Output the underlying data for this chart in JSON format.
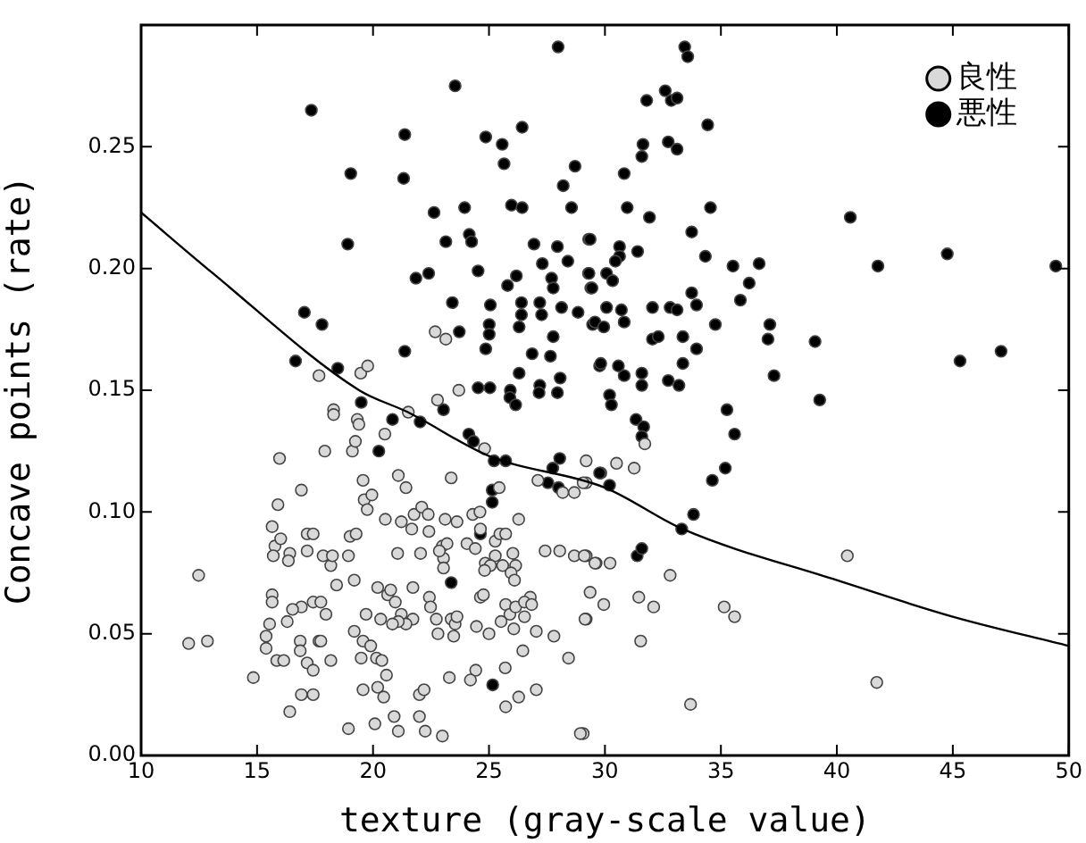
{
  "chart_data": {
    "type": "scatter",
    "xlabel": "texture (gray-scale value)",
    "ylabel": "Concave points (rate)",
    "xlim": [
      10,
      50
    ],
    "xticks": [
      10,
      15,
      20,
      25,
      30,
      35,
      40,
      45,
      50
    ],
    "ylim": [
      0,
      0.3
    ],
    "yticks": [
      {
        "value": 0,
        "label": "0.00"
      },
      {
        "value": 0.05,
        "label": "0.05"
      },
      {
        "value": 0.1,
        "label": "0.10"
      },
      {
        "value": 0.15,
        "label": "0.15"
      },
      {
        "value": 0.2,
        "label": "0.20"
      },
      {
        "value": 0.25,
        "label": "0.25"
      }
    ],
    "grid": false,
    "legend": "top right",
    "marker": "circle",
    "series": [
      {
        "name": "良性",
        "color": "#d9d9d9",
        "x": [
          22.68,
          23.14,
          17.67,
          19.47,
          19.77,
          23.7,
          31.72,
          29.19,
          30.5,
          31.26,
          29.19,
          29.19,
          29.62,
          30.22,
          32.81,
          40.45,
          29.36,
          31.46,
          29.95,
          32.1,
          35.14,
          35.59,
          29.19,
          31.54,
          41.72,
          33.69,
          29.06,
          18.3,
          18.3,
          19.32,
          19.39,
          20.51,
          21.52,
          22.78,
          17.92,
          19.11,
          19.24,
          15.97,
          24.81,
          21.09,
          21.42,
          23.37,
          25.44,
          27.11,
          28.18,
          28.68,
          29.06,
          15.9,
          16.91,
          19.57,
          19.62,
          19.75,
          19.95,
          20.53,
          21.22,
          21.77,
          22.1,
          22.38,
          23.11,
          23.62,
          21.67,
          22.41,
          24.05,
          24.3,
          24.61,
          26.28,
          15.65,
          15.77,
          16.02,
          16.41,
          16.35,
          15.7,
          17.16,
          17.42,
          17.16,
          17.85,
          18.18,
          18.25,
          18.94,
          19.01,
          19.27,
          21.06,
          22.05,
          22.99,
          23.04,
          23.04,
          23.19,
          22.86,
          24.63,
          24.41,
          25.27,
          25.27,
          25.47,
          25.72,
          24.84,
          25.06,
          25.59,
          26.03,
          26.15,
          25.95,
          24.81,
          27.42,
          28.05,
          28.68,
          29.11,
          29.57,
          26.1,
          26.78,
          12.48,
          15.65,
          15.65,
          18.43,
          19.19,
          17.42,
          17.75,
          17.97,
          20.2,
          20.63,
          20.76,
          20.96,
          21.72,
          21.22,
          21.72,
          21.42,
          21.09,
          20.84,
          20.33,
          19.7,
          16.91,
          16.53,
          16.3,
          15.54,
          22.43,
          22.48,
          22.73,
          23.37,
          23.54,
          22.8,
          23.48,
          23.62,
          24.63,
          24.76,
          25.72,
          25.9,
          26.15,
          26.53,
          26.53,
          26.84,
          25.52,
          26.07,
          25.0,
          24.46,
          27.04,
          27.8,
          29.14,
          28.43,
          26.46,
          25.7,
          24.43,
          24.2,
          23.29,
          25.72,
          26.28,
          27.04,
          12.05,
          12.86,
          14.84,
          15.39,
          15.39,
          15.85,
          16.15,
          16.86,
          16.86,
          17.16,
          17.42,
          17.67,
          17.75,
          18.18,
          19.19,
          19.57,
          19.49,
          19.9,
          20.15,
          20.38,
          20.58,
          19.57,
          20.2,
          20.46,
          16.91,
          16.41,
          17.42,
          18.94,
          20.08,
          20.91,
          21.09,
          22.0,
          22.25,
          22.99,
          22.0,
          22.2,
          28.94
        ],
        "values": [
          0.174,
          0.171,
          0.156,
          0.157,
          0.16,
          0.15,
          0.128,
          0.121,
          0.12,
          0.118,
          0.112,
          0.082,
          0.079,
          0.079,
          0.074,
          0.082,
          0.067,
          0.065,
          0.062,
          0.061,
          0.061,
          0.057,
          0.056,
          0.047,
          0.03,
          0.021,
          0.009,
          0.142,
          0.14,
          0.138,
          0.136,
          0.132,
          0.141,
          0.146,
          0.125,
          0.125,
          0.129,
          0.122,
          0.126,
          0.115,
          0.11,
          0.114,
          0.11,
          0.113,
          0.108,
          0.108,
          0.112,
          0.103,
          0.109,
          0.113,
          0.105,
          0.101,
          0.107,
          0.097,
          0.096,
          0.099,
          0.102,
          0.099,
          0.097,
          0.096,
          0.093,
          0.092,
          0.087,
          0.099,
          0.1,
          0.097,
          0.094,
          0.086,
          0.089,
          0.083,
          0.08,
          0.082,
          0.091,
          0.091,
          0.084,
          0.082,
          0.078,
          0.082,
          0.082,
          0.09,
          0.091,
          0.083,
          0.083,
          0.086,
          0.081,
          0.077,
          0.087,
          0.084,
          0.093,
          0.085,
          0.088,
          0.082,
          0.091,
          0.091,
          0.079,
          0.078,
          0.078,
          0.083,
          0.078,
          0.075,
          0.076,
          0.084,
          0.084,
          0.082,
          0.082,
          0.079,
          0.072,
          0.065,
          0.074,
          0.066,
          0.063,
          0.07,
          0.072,
          0.063,
          0.063,
          0.058,
          0.069,
          0.066,
          0.068,
          0.063,
          0.069,
          0.058,
          0.056,
          0.054,
          0.055,
          0.054,
          0.056,
          0.058,
          0.061,
          0.06,
          0.055,
          0.054,
          0.065,
          0.061,
          0.056,
          0.056,
          0.054,
          0.05,
          0.049,
          0.057,
          0.065,
          0.066,
          0.062,
          0.058,
          0.061,
          0.057,
          0.063,
          0.062,
          0.055,
          0.052,
          0.05,
          0.053,
          0.051,
          0.049,
          0.056,
          0.04,
          0.043,
          0.036,
          0.035,
          0.031,
          0.032,
          0.02,
          0.024,
          0.027,
          0.046,
          0.047,
          0.032,
          0.044,
          0.049,
          0.039,
          0.039,
          0.047,
          0.043,
          0.038,
          0.035,
          0.047,
          0.047,
          0.039,
          0.051,
          0.047,
          0.04,
          0.045,
          0.04,
          0.039,
          0.033,
          0.027,
          0.028,
          0.024,
          0.025,
          0.018,
          0.025,
          0.011,
          0.013,
          0.016,
          0.01,
          0.016,
          0.01,
          0.008,
          0.025,
          0.027,
          0.009
        ]
      },
      {
        "name": "悪性",
        "color": "#000000",
        "x": [
          27.98,
          23.54,
          17.34,
          21.37,
          24.86,
          26.43,
          25.57,
          25.65,
          28.71,
          19.04,
          21.32,
          28.2,
          22.63,
          23.95,
          25.97,
          26.43,
          28.56,
          24.15,
          24.25,
          18.91,
          23.14,
          26.94,
          27.95,
          29.3,
          28.4,
          27.3,
          24.53,
          21.85,
          22.4,
          26.18,
          25.8,
          27.7,
          27.77,
          29.29,
          29.39,
          23.42,
          25.06,
          26.4,
          27.19,
          28.13,
          28.84,
          26.4,
          27.27,
          17.04,
          17.8,
          23.72,
          25.01,
          25.01,
          26.3,
          29.47,
          27.77,
          21.37,
          24.86,
          26.86,
          27.65,
          29.77,
          16.66,
          18.48,
          26.3,
          28.07,
          24.53,
          25.04,
          25.92,
          27.19,
          33.44,
          33.57,
          32.6,
          31.8,
          32.86,
          33.11,
          34.43,
          31.64,
          31.59,
          32.73,
          33.11,
          30.83,
          30.96,
          31.92,
          34.55,
          33.74,
          29.36,
          30.63,
          30.63,
          31.41,
          30.45,
          34.33,
          29.31,
          30.07,
          30.33,
          29.44,
          35.52,
          36.22,
          36.65,
          35.84,
          33.74,
          33.95,
          40.58,
          41.77,
          44.76,
          49.44,
          30.07,
          30.71,
          32.05,
          32.81,
          33.11,
          34.76,
          29.57,
          29.95,
          30.83,
          32.05,
          32.3,
          33.36,
          33.95,
          37.11,
          37.03,
          39.06,
          45.31,
          47.08,
          29.82,
          30.58,
          30.83,
          31.59,
          32.73,
          33.19,
          33.36,
          37.29,
          31.59,
          30.2,
          30.28,
          31.34,
          31.67,
          31.59,
          35.26,
          35.59,
          39.26,
          35.19,
          34.63,
          29.82,
          30.2,
          33.82,
          33.31,
          31.39,
          31.59,
          19.49,
          20.84,
          22.03,
          23.04,
          20.25,
          24.13,
          24.33,
          25.9,
          26.15,
          27.16,
          27.95,
          25.22,
          25.72,
          27.75,
          28.05,
          28.0,
          27.54,
          25.14,
          25.14,
          24.63,
          23.37,
          25.16,
          29.77
        ],
        "values": [
          0.291,
          0.275,
          0.265,
          0.255,
          0.254,
          0.258,
          0.251,
          0.243,
          0.242,
          0.239,
          0.237,
          0.234,
          0.223,
          0.225,
          0.226,
          0.225,
          0.225,
          0.214,
          0.211,
          0.21,
          0.211,
          0.21,
          0.209,
          0.212,
          0.203,
          0.202,
          0.199,
          0.196,
          0.198,
          0.197,
          0.193,
          0.196,
          0.192,
          0.198,
          0.192,
          0.186,
          0.185,
          0.186,
          0.186,
          0.184,
          0.182,
          0.181,
          0.181,
          0.182,
          0.177,
          0.174,
          0.177,
          0.173,
          0.176,
          0.177,
          0.172,
          0.166,
          0.167,
          0.165,
          0.164,
          0.16,
          0.162,
          0.159,
          0.157,
          0.155,
          0.151,
          0.151,
          0.15,
          0.152,
          0.291,
          0.287,
          0.273,
          0.269,
          0.269,
          0.27,
          0.259,
          0.251,
          0.246,
          0.252,
          0.249,
          0.239,
          0.225,
          0.221,
          0.225,
          0.215,
          0.212,
          0.209,
          0.205,
          0.207,
          0.203,
          0.205,
          0.198,
          0.198,
          0.195,
          0.192,
          0.201,
          0.194,
          0.202,
          0.187,
          0.19,
          0.185,
          0.221,
          0.201,
          0.206,
          0.201,
          0.184,
          0.183,
          0.184,
          0.184,
          0.183,
          0.177,
          0.178,
          0.176,
          0.178,
          0.171,
          0.172,
          0.172,
          0.167,
          0.177,
          0.171,
          0.17,
          0.162,
          0.166,
          0.161,
          0.16,
          0.156,
          0.157,
          0.154,
          0.152,
          0.161,
          0.156,
          0.152,
          0.148,
          0.144,
          0.138,
          0.135,
          0.131,
          0.142,
          0.132,
          0.146,
          0.118,
          0.113,
          0.116,
          0.111,
          0.099,
          0.093,
          0.082,
          0.085,
          0.145,
          0.138,
          0.137,
          0.142,
          0.125,
          0.132,
          0.129,
          0.147,
          0.144,
          0.149,
          0.149,
          0.121,
          0.121,
          0.118,
          0.122,
          0.11,
          0.112,
          0.109,
          0.104,
          0.091,
          0.071,
          0.029,
          0.116
        ]
      },
      {
        "type": "line",
        "color": "#000000",
        "marker": "none",
        "x": [
          10,
          13.1,
          19.4,
          21.5,
          25,
          30,
          33.35,
          40,
          45,
          50
        ],
        "values": [
          0.223,
          0.198,
          0.15,
          0.141,
          0.123,
          0.11,
          0.093,
          0.072,
          0.057,
          0.045
        ]
      }
    ]
  }
}
